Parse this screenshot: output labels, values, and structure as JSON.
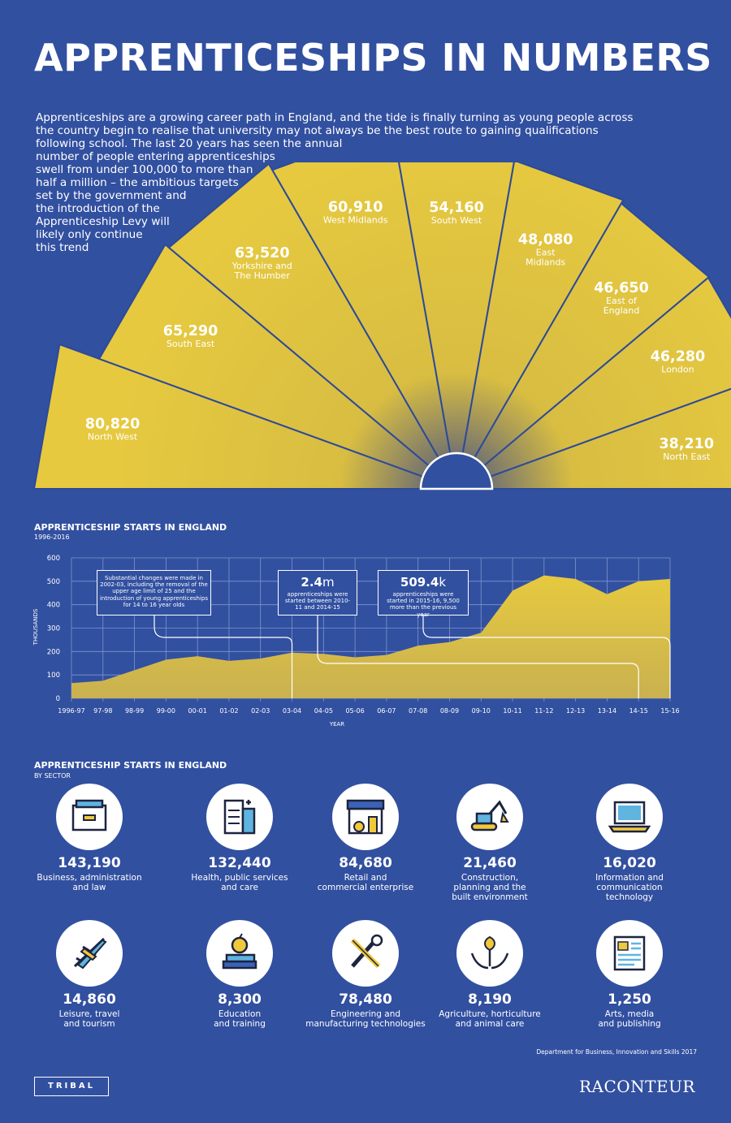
{
  "title": "APPRENTICESHIPS IN NUMBERS",
  "intro_lines": [
    "Apprenticeships are a growing career path in England, and the tide is finally turning as young people across",
    "the country begin to realise that university may not always be the best route to gaining qualifications",
    "following school. The last 20 years has seen the annual",
    "number of people entering apprenticeships",
    "swell from under 100,000 to more than",
    "half a million – the ambitious targets",
    "set by the government and",
    "the introduction of the",
    "Apprenticeship Levy will",
    "likely only continue",
    "this trend"
  ],
  "colors": {
    "background": "#3250a0",
    "accent": "#e6c93f",
    "line": "#2d4a9a"
  },
  "regions_chart": {
    "type": "bar",
    "regions": [
      {
        "value": "80,820",
        "name": [
          "North West"
        ],
        "n": 80820
      },
      {
        "value": "65,290",
        "name": [
          "South East"
        ],
        "n": 65290
      },
      {
        "value": "63,520",
        "name": [
          "Yorkshire and",
          "The Humber"
        ],
        "n": 63520
      },
      {
        "value": "60,910",
        "name": [
          "West Midlands"
        ],
        "n": 60910
      },
      {
        "value": "54,160",
        "name": [
          "South West"
        ],
        "n": 54160
      },
      {
        "value": "48,080",
        "name": [
          "East",
          "Midlands"
        ],
        "n": 48080
      },
      {
        "value": "46,650",
        "name": [
          "East of",
          "England"
        ],
        "n": 46650
      },
      {
        "value": "46,280",
        "name": [
          "London"
        ],
        "n": 46280
      },
      {
        "value": "38,210",
        "name": [
          "North East"
        ],
        "n": 38210
      }
    ]
  },
  "chart_data": {
    "type": "area",
    "title": "APPRENTICESHIP STARTS IN ENGLAND",
    "subtitle": "1996-2016",
    "xlabel": "YEAR",
    "ylabel": "THOUSANDS",
    "ylim": [
      0,
      600
    ],
    "yticks": [
      "0",
      "100",
      "200",
      "300",
      "400",
      "500",
      "600"
    ],
    "grid": true,
    "categories": [
      "1996-97",
      "97-98",
      "98-99",
      "99-00",
      "00-01",
      "01-02",
      "02-03",
      "03-04",
      "04-05",
      "05-06",
      "06-07",
      "07-08",
      "08-09",
      "09-10",
      "10-11",
      "11-12",
      "12-13",
      "13-14",
      "14-15",
      "15-16"
    ],
    "values": [
      65,
      75,
      120,
      165,
      180,
      160,
      170,
      195,
      190,
      175,
      185,
      225,
      240,
      280,
      460,
      525,
      510,
      445,
      500,
      510
    ],
    "annotations": [
      {
        "text": "Substantial changes were made in 2002-03, including the removal of the upper age limit of 25 and the introduction of young apprenticeships for 14 to 16 year olds",
        "anchor": "03-04"
      },
      {
        "big": "2.4",
        "unit": "m",
        "text": "apprenticeships were started between 2010-11 and 2014-15",
        "anchor": "14-15"
      },
      {
        "big": "509.4",
        "unit": "k",
        "text": "apprenticeships were started in 2015-16, 9,500 more than the previous year",
        "anchor": "15-16"
      }
    ]
  },
  "sectors_section": {
    "title": "APPRENTICESHIP STARTS IN ENGLAND",
    "subtitle": "BY SECTOR"
  },
  "sectors": [
    {
      "value": "143,190",
      "label": "Business, administration\nand law",
      "icon": "filing-cabinet-icon"
    },
    {
      "value": "132,440",
      "label": "Health, public services\nand care",
      "icon": "hospital-icon"
    },
    {
      "value": "84,680",
      "label": "Retail and\ncommercial enterprise",
      "icon": "shop-icon"
    },
    {
      "value": "21,460",
      "label": "Construction,\nplanning and the\nbuilt environment",
      "icon": "excavator-icon"
    },
    {
      "value": "16,020",
      "label": "Information and\ncommunication\ntechnology",
      "icon": "laptop-icon"
    },
    {
      "value": "14,860",
      "label": "Leisure, travel\nand tourism",
      "icon": "airplane-icon"
    },
    {
      "value": "8,300",
      "label": "Education\nand training",
      "icon": "books-apple-icon"
    },
    {
      "value": "78,480",
      "label": "Engineering and\nmanufacturing technologies",
      "icon": "tools-icon"
    },
    {
      "value": "8,190",
      "label": "Agriculture, horticulture\nand animal care",
      "icon": "plant-hands-icon"
    },
    {
      "value": "1,250",
      "label": "Arts, media\nand publishing",
      "icon": "newspaper-icon"
    }
  ],
  "source": "Department for Business, Innovation and Skills 2017",
  "logos": {
    "left": "TRIBAL",
    "right": "RACONTEUR"
  }
}
